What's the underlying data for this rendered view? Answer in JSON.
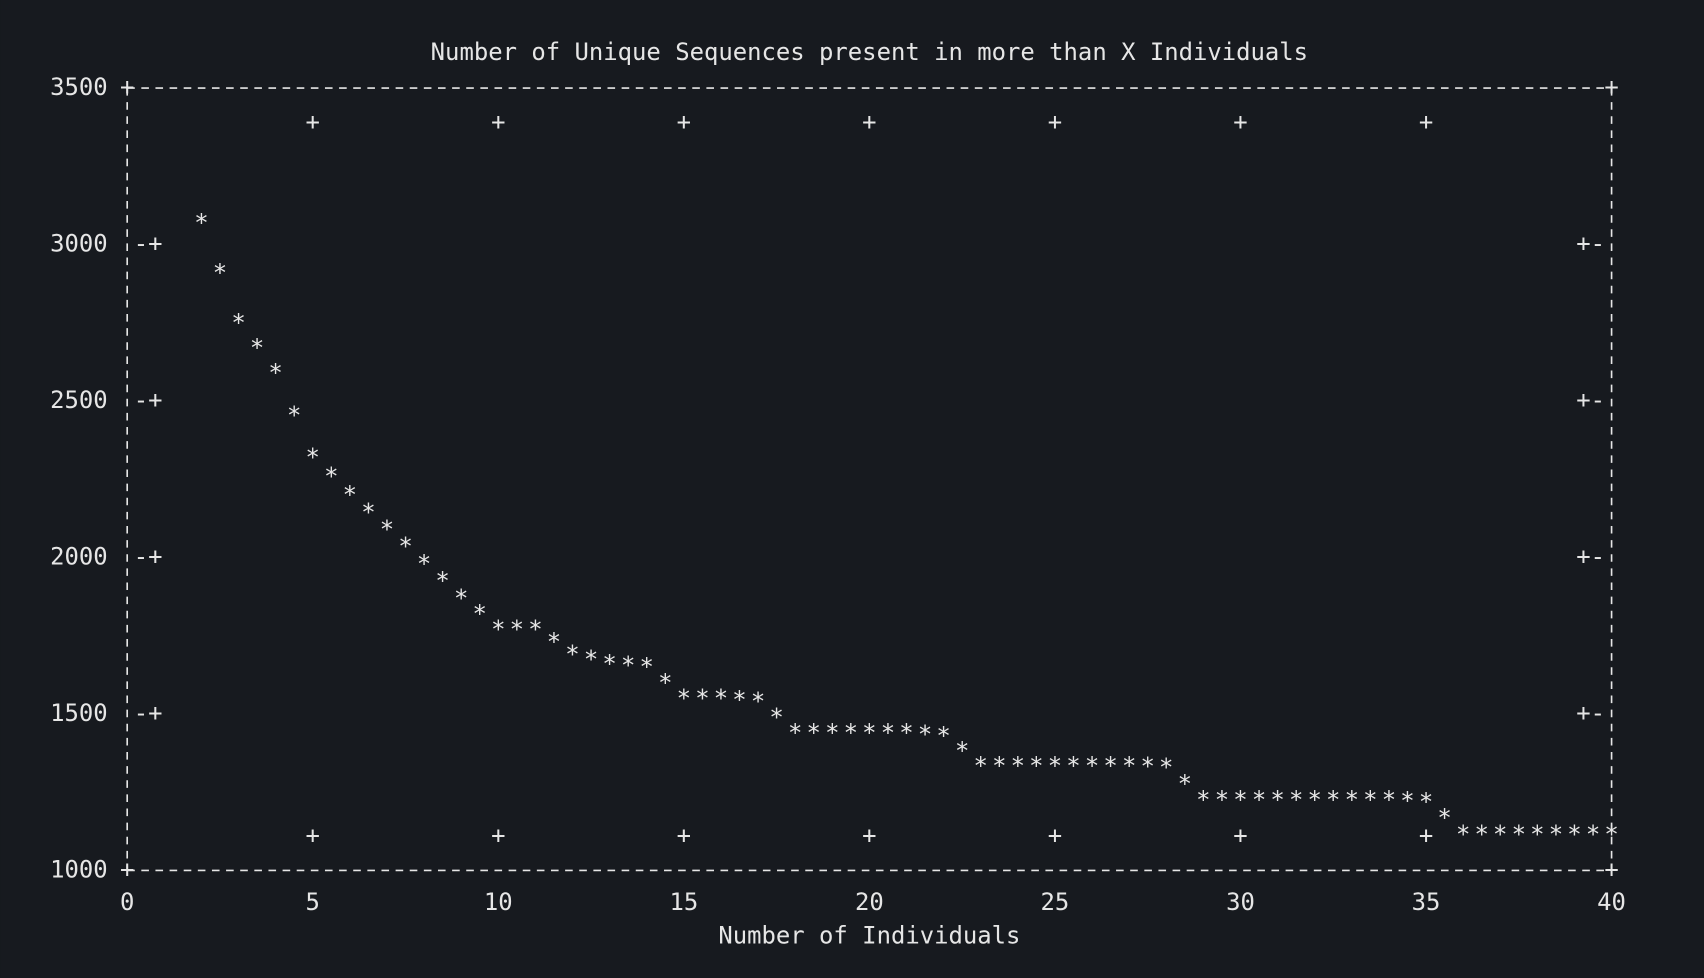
{
  "chart_data": {
    "type": "line",
    "title": "Number of Unique Sequences present in more than X Individuals",
    "xlabel": "Number of Individuals",
    "x": [
      2,
      3,
      4,
      5,
      6,
      7,
      8,
      9,
      10,
      11,
      12,
      13,
      14,
      15,
      16,
      17,
      18,
      19,
      20,
      21,
      22,
      23,
      24,
      25,
      26,
      27,
      28,
      29,
      30,
      31,
      32,
      33,
      34,
      35,
      36,
      37,
      38,
      39,
      40
    ],
    "series": [
      {
        "color": "#e6e6e6",
        "values": [
          3080,
          2760,
          2600,
          2330,
          2210,
          2100,
          1990,
          1880,
          1780,
          1780,
          1700,
          1670,
          1660,
          1560,
          1560,
          1550,
          1450,
          1450,
          1450,
          1450,
          1440,
          1345,
          1345,
          1345,
          1345,
          1345,
          1340,
          1235,
          1235,
          1235,
          1235,
          1235,
          1235,
          1230,
          1125,
          1125,
          1125,
          1125,
          1125
        ]
      }
    ],
    "xlim": [
      0,
      40
    ],
    "xticks": [
      0,
      5,
      10,
      15,
      20,
      25,
      30,
      35,
      40
    ],
    "ylim": [
      1000,
      3500
    ],
    "yticks": [
      1000,
      1500,
      2000,
      2500,
      3000,
      3500
    ]
  }
}
